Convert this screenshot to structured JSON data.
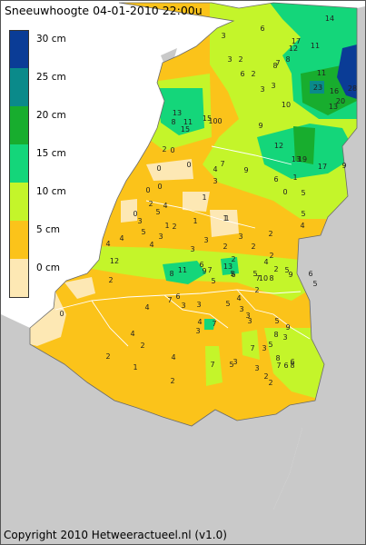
{
  "title": "Sneeuwhoogte 04-01-2010 22:00u",
  "copyright": "Copyright 2010 Hetweeractueel.nl (v1.0)",
  "colors": {
    "sea": "#ffffff",
    "neighbour_land": "#c9c9c9",
    "border_line": "#ffffff"
  },
  "legend": [
    {
      "label": "30 cm",
      "color": "#0a3c96"
    },
    {
      "label": "25 cm",
      "color": "#0a8a8a"
    },
    {
      "label": "20 cm",
      "color": "#18ad2e"
    },
    {
      "label": "15 cm",
      "color": "#14d67a"
    },
    {
      "label": "10 cm",
      "color": "#c4f52a"
    },
    {
      "label": "5 cm",
      "color": "#fbc31a"
    },
    {
      "label": "0 cm",
      "color": "#fde8b4"
    }
  ],
  "station_values": [
    {
      "v": "14"
    },
    {
      "v": "6"
    },
    {
      "v": "17"
    },
    {
      "v": "11"
    },
    {
      "v": "8"
    },
    {
      "v": "7"
    },
    {
      "v": "12"
    },
    {
      "v": "3"
    },
    {
      "v": "3"
    },
    {
      "v": "2"
    },
    {
      "v": "8"
    },
    {
      "v": "2"
    },
    {
      "v": "6"
    },
    {
      "v": "3"
    },
    {
      "v": "11"
    },
    {
      "v": "3"
    },
    {
      "v": "23"
    },
    {
      "v": "16"
    },
    {
      "v": "28"
    },
    {
      "v": "20"
    },
    {
      "v": "13"
    },
    {
      "v": "10"
    },
    {
      "v": "13"
    },
    {
      "v": "8"
    },
    {
      "v": "11"
    },
    {
      "v": "15"
    },
    {
      "v": "15"
    },
    {
      "v": "100"
    },
    {
      "v": "9"
    },
    {
      "v": "2"
    },
    {
      "v": "0"
    },
    {
      "v": "12"
    },
    {
      "v": "19"
    },
    {
      "v": "13"
    },
    {
      "v": "17"
    },
    {
      "v": "9"
    },
    {
      "v": "9"
    },
    {
      "v": "0"
    },
    {
      "v": "0"
    },
    {
      "v": "4"
    },
    {
      "v": "7"
    },
    {
      "v": "6"
    },
    {
      "v": "1"
    },
    {
      "v": "0"
    },
    {
      "v": "1"
    },
    {
      "v": "1"
    },
    {
      "v": "3"
    },
    {
      "v": "0"
    },
    {
      "v": "2"
    },
    {
      "v": "0"
    },
    {
      "v": "3"
    },
    {
      "v": "5"
    },
    {
      "v": "4"
    },
    {
      "v": "5"
    },
    {
      "v": "3"
    },
    {
      "v": "1"
    },
    {
      "v": "2"
    },
    {
      "v": "1"
    },
    {
      "v": "1"
    },
    {
      "v": "0"
    },
    {
      "v": "5"
    },
    {
      "v": "5"
    },
    {
      "v": "4"
    },
    {
      "v": "2"
    },
    {
      "v": "2"
    },
    {
      "v": "2"
    },
    {
      "v": "3"
    },
    {
      "v": "4"
    },
    {
      "v": "4"
    },
    {
      "v": "4"
    },
    {
      "v": "3"
    },
    {
      "v": "3"
    },
    {
      "v": "2"
    },
    {
      "v": "2"
    },
    {
      "v": "4"
    },
    {
      "v": "2"
    },
    {
      "v": "12"
    },
    {
      "v": "8"
    },
    {
      "v": "11"
    },
    {
      "v": "6"
    },
    {
      "v": "9"
    },
    {
      "v": "7"
    },
    {
      "v": "13"
    },
    {
      "v": "5"
    },
    {
      "v": "5"
    },
    {
      "v": "5"
    },
    {
      "v": "5"
    },
    {
      "v": "6"
    },
    {
      "v": "7"
    },
    {
      "v": "10"
    },
    {
      "v": "8"
    },
    {
      "v": "9"
    },
    {
      "v": "6"
    },
    {
      "v": "5"
    },
    {
      "v": "0"
    },
    {
      "v": "3"
    },
    {
      "v": "3"
    },
    {
      "v": "3"
    },
    {
      "v": "4"
    },
    {
      "v": "7"
    },
    {
      "v": "2"
    },
    {
      "v": "5"
    },
    {
      "v": "3"
    },
    {
      "v": "3"
    },
    {
      "v": "3"
    },
    {
      "v": "4"
    },
    {
      "v": "2"
    },
    {
      "v": "2"
    },
    {
      "v": "1"
    },
    {
      "v": "4"
    },
    {
      "v": "7"
    },
    {
      "v": "5"
    },
    {
      "v": "3"
    },
    {
      "v": "7"
    },
    {
      "v": "5"
    },
    {
      "v": "8"
    },
    {
      "v": "6"
    },
    {
      "v": "7"
    },
    {
      "v": "6"
    },
    {
      "v": "8"
    },
    {
      "v": "3"
    },
    {
      "v": "2"
    },
    {
      "v": "2"
    },
    {
      "v": "2"
    },
    {
      "v": "2"
    },
    {
      "v": "4"
    },
    {
      "v": "7"
    },
    {
      "v": "6"
    },
    {
      "v": "4"
    },
    {
      "v": "3"
    },
    {
      "v": "3"
    },
    {
      "v": "8"
    },
    {
      "v": "5"
    },
    {
      "v": "9"
    }
  ]
}
